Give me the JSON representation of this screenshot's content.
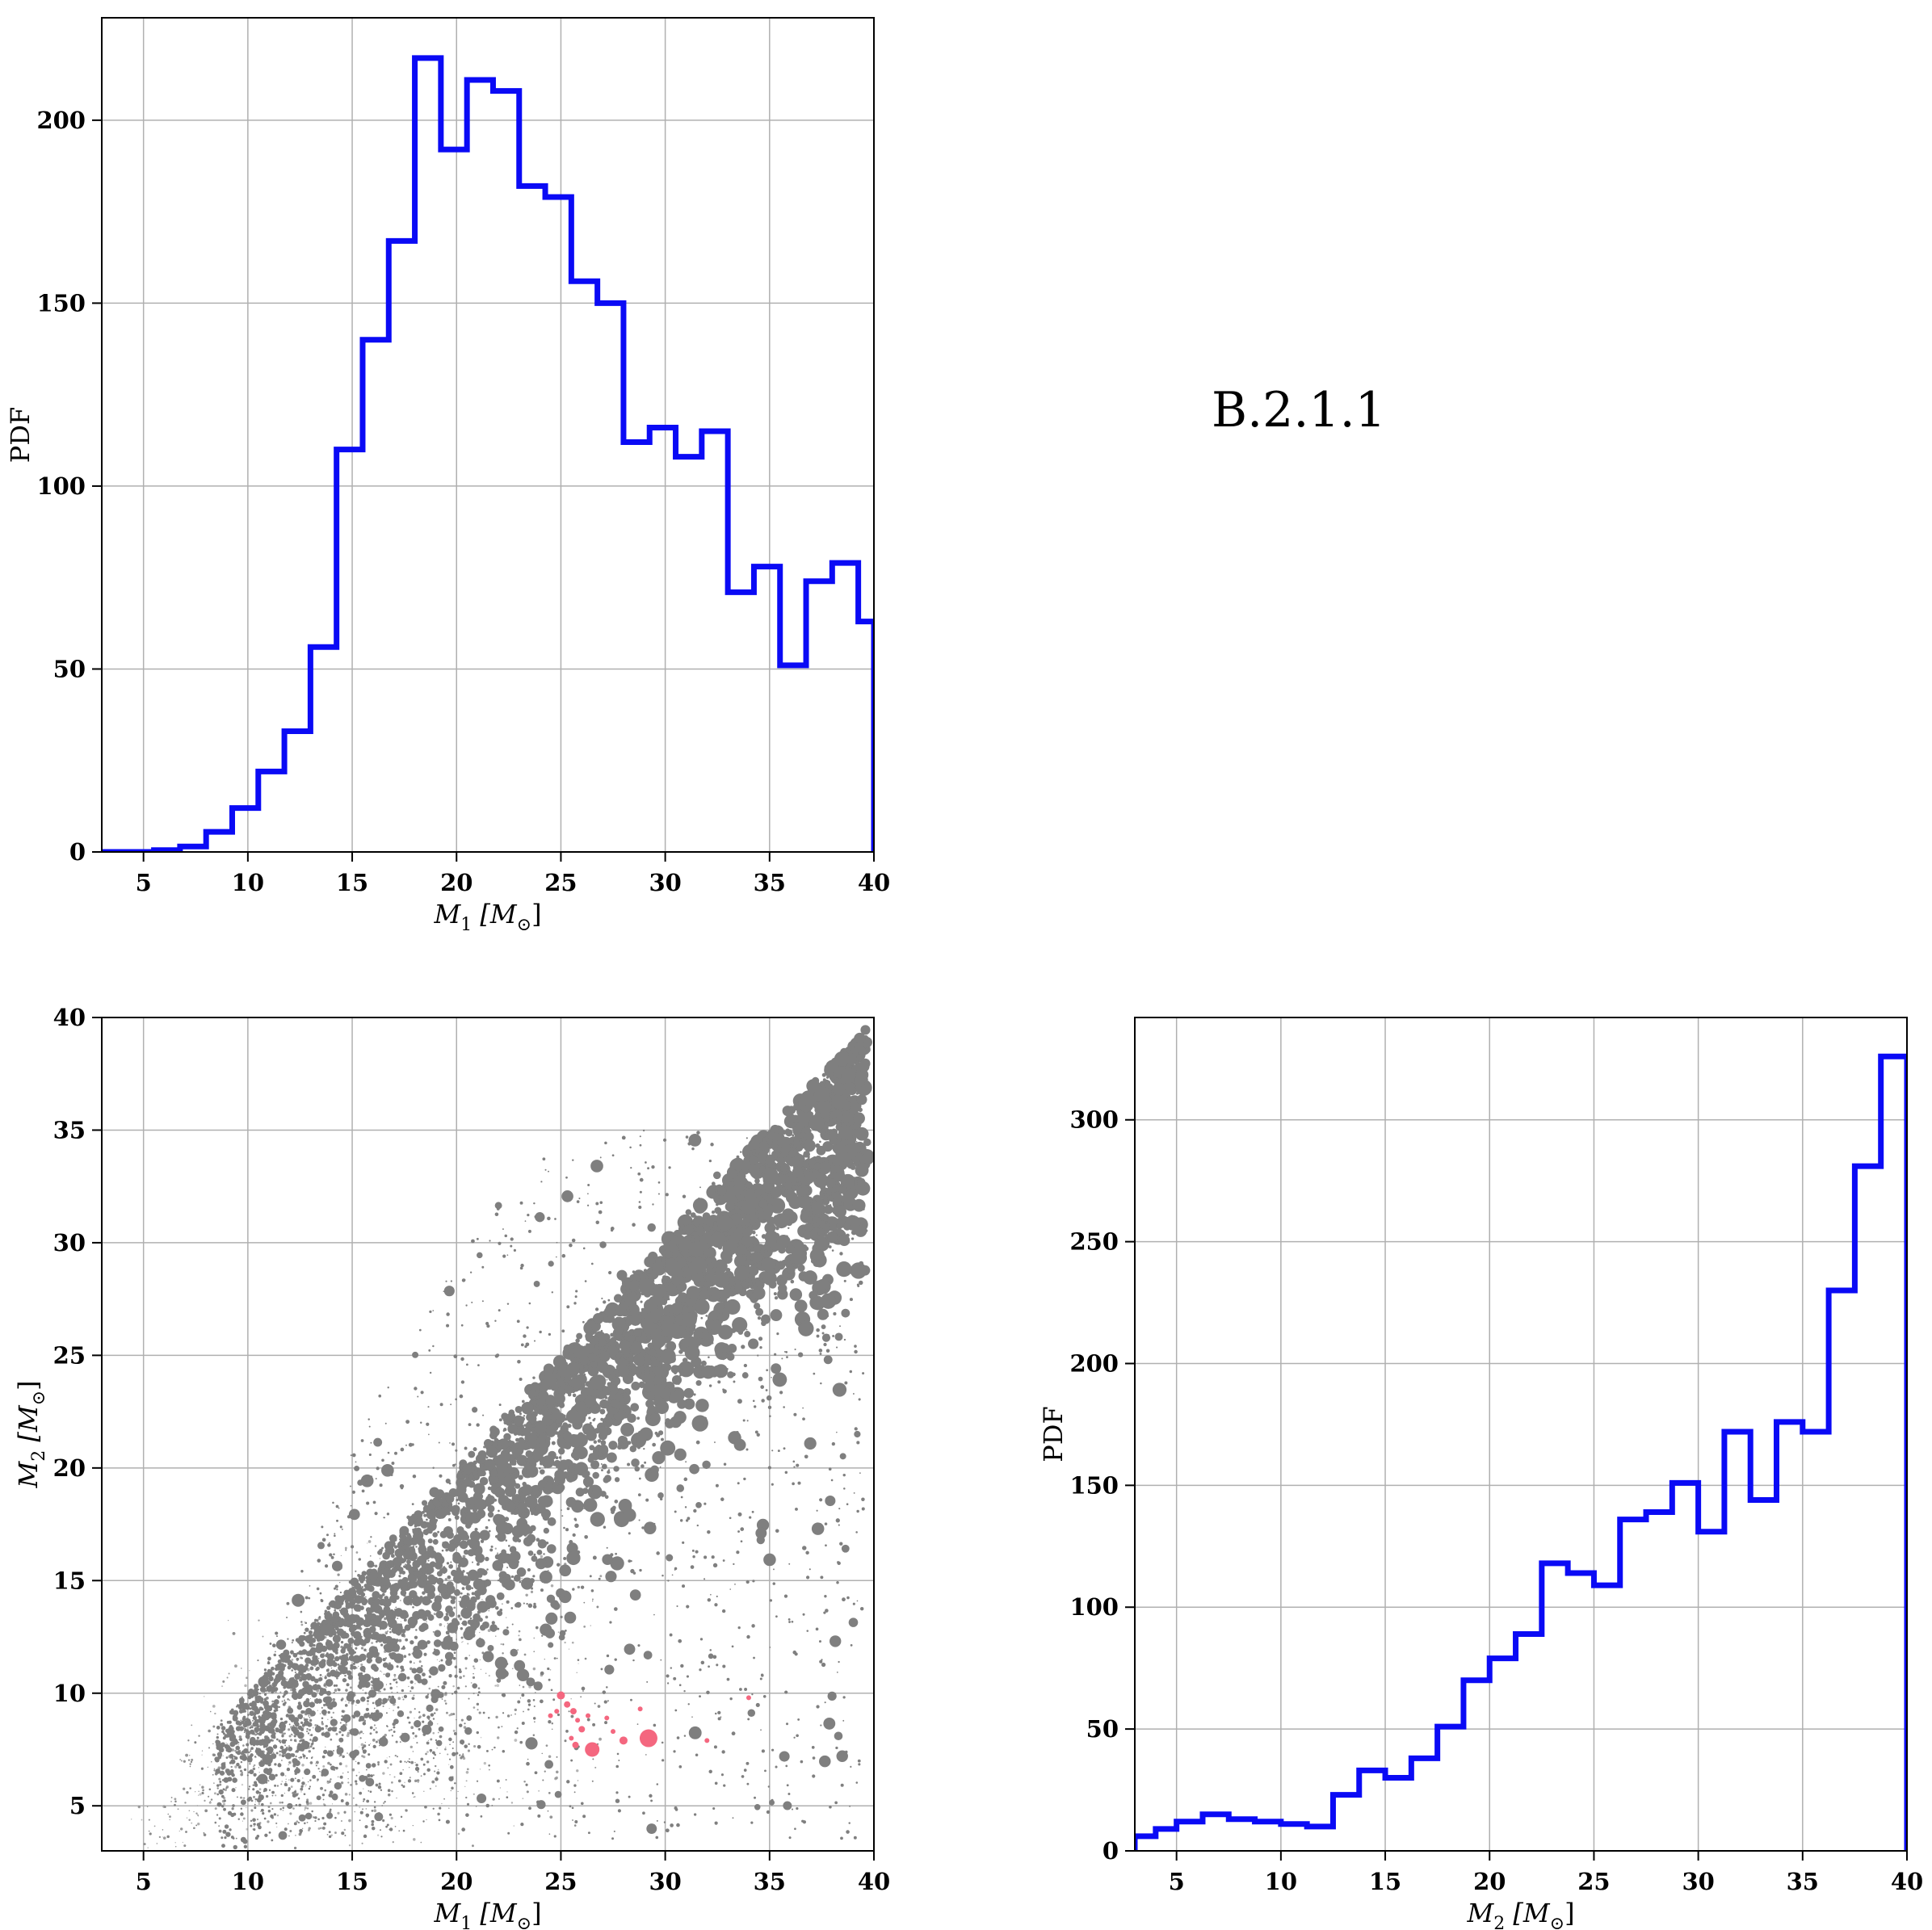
{
  "panel_label": "B.2.1.1",
  "chart_data": [
    {
      "id": "m1_hist",
      "type": "step",
      "xlabel_main": "M",
      "xlabel_sub": "1",
      "xlabel_unit": "[M",
      "xlabel_unit_sub": "⊙",
      "xlabel_close": "]",
      "ylabel": "PDF",
      "xlim": [
        3,
        40
      ],
      "ylim": [
        0,
        228
      ],
      "xticks": [
        5,
        10,
        15,
        20,
        25,
        30,
        35,
        40
      ],
      "yticks": [
        0,
        50,
        100,
        150,
        200
      ],
      "grid": true,
      "bin_edges": [
        3.0,
        4.25,
        5.5,
        6.75,
        8.0,
        9.25,
        10.5,
        11.75,
        13.0,
        14.25,
        15.5,
        16.75,
        18.0,
        19.25,
        20.5,
        21.75,
        23.0,
        24.25,
        25.5,
        26.75,
        28.0,
        29.25,
        30.5,
        31.75,
        33.0,
        34.25,
        35.5,
        36.75,
        38.0,
        39.25,
        40.0
      ],
      "values": [
        0,
        0,
        0.5,
        1.5,
        5.5,
        12,
        22,
        33,
        56,
        110,
        140,
        167,
        217,
        192,
        211,
        208,
        182,
        179,
        156,
        150,
        112,
        116,
        108,
        115,
        71,
        78,
        51,
        74,
        79,
        63
      ]
    },
    {
      "id": "scatter",
      "type": "scatter",
      "xlabel_main": "M",
      "xlabel_sub": "1",
      "xlabel_unit": "[M",
      "xlabel_unit_sub": "⊙",
      "xlabel_close": "]",
      "ylabel_main": "M",
      "ylabel_sub": "2",
      "ylabel_unit": "[M",
      "ylabel_unit_sub": "⊙",
      "ylabel_close": "]",
      "xlim": [
        3,
        40
      ],
      "ylim": [
        3,
        40
      ],
      "xticks": [
        5,
        10,
        15,
        20,
        25,
        30,
        35,
        40
      ],
      "yticks": [
        5,
        10,
        15,
        20,
        25,
        30,
        35,
        40
      ],
      "grid": true,
      "colors": {
        "population": "#7f7f7f",
        "highlight": "#f4677f"
      },
      "highlight_points": [
        [
          25.0,
          9.9
        ],
        [
          25.3,
          9.5
        ],
        [
          25.6,
          9.2
        ],
        [
          25.8,
          8.8
        ],
        [
          26.0,
          8.4
        ],
        [
          25.5,
          8.0
        ],
        [
          25.7,
          7.7
        ],
        [
          26.5,
          7.5
        ],
        [
          27.5,
          8.3
        ],
        [
          28.0,
          7.9
        ],
        [
          29.2,
          8.0
        ],
        [
          27.2,
          8.9
        ],
        [
          26.3,
          9.0
        ],
        [
          24.8,
          9.2
        ],
        [
          24.5,
          9.0
        ],
        [
          28.8,
          9.3
        ],
        [
          32.0,
          7.9
        ],
        [
          34.0,
          9.8
        ]
      ],
      "highlight_sizes": [
        5,
        4,
        4,
        3,
        4,
        3,
        4,
        9,
        3,
        5,
        11,
        3,
        3,
        3,
        3,
        3,
        3,
        3
      ]
    },
    {
      "id": "m2_hist",
      "type": "step",
      "xlabel_main": "M",
      "xlabel_sub": "2",
      "xlabel_unit": "[M",
      "xlabel_unit_sub": "⊙",
      "xlabel_close": "]",
      "ylabel": "PDF",
      "xlim": [
        3,
        40
      ],
      "ylim": [
        0,
        342
      ],
      "xticks": [
        5,
        10,
        15,
        20,
        25,
        30,
        35,
        40
      ],
      "yticks": [
        0,
        50,
        100,
        150,
        200,
        250,
        300
      ],
      "grid": true,
      "bin_edges": [
        3.0,
        4.0,
        5.0,
        6.25,
        7.5,
        8.75,
        10.0,
        11.25,
        12.5,
        13.75,
        15.0,
        16.25,
        17.5,
        18.75,
        20.0,
        21.25,
        22.5,
        23.75,
        25.0,
        26.25,
        27.5,
        28.75,
        30.0,
        31.25,
        32.5,
        33.75,
        35.0,
        36.25,
        37.5,
        38.75,
        40.0
      ],
      "values": [
        6,
        9,
        12,
        15,
        13,
        12,
        11,
        10,
        23,
        33,
        30,
        38,
        51,
        70,
        79,
        89,
        118,
        114,
        109,
        136,
        139,
        151,
        131,
        172,
        144,
        176,
        172,
        230,
        281,
        326
      ]
    }
  ]
}
